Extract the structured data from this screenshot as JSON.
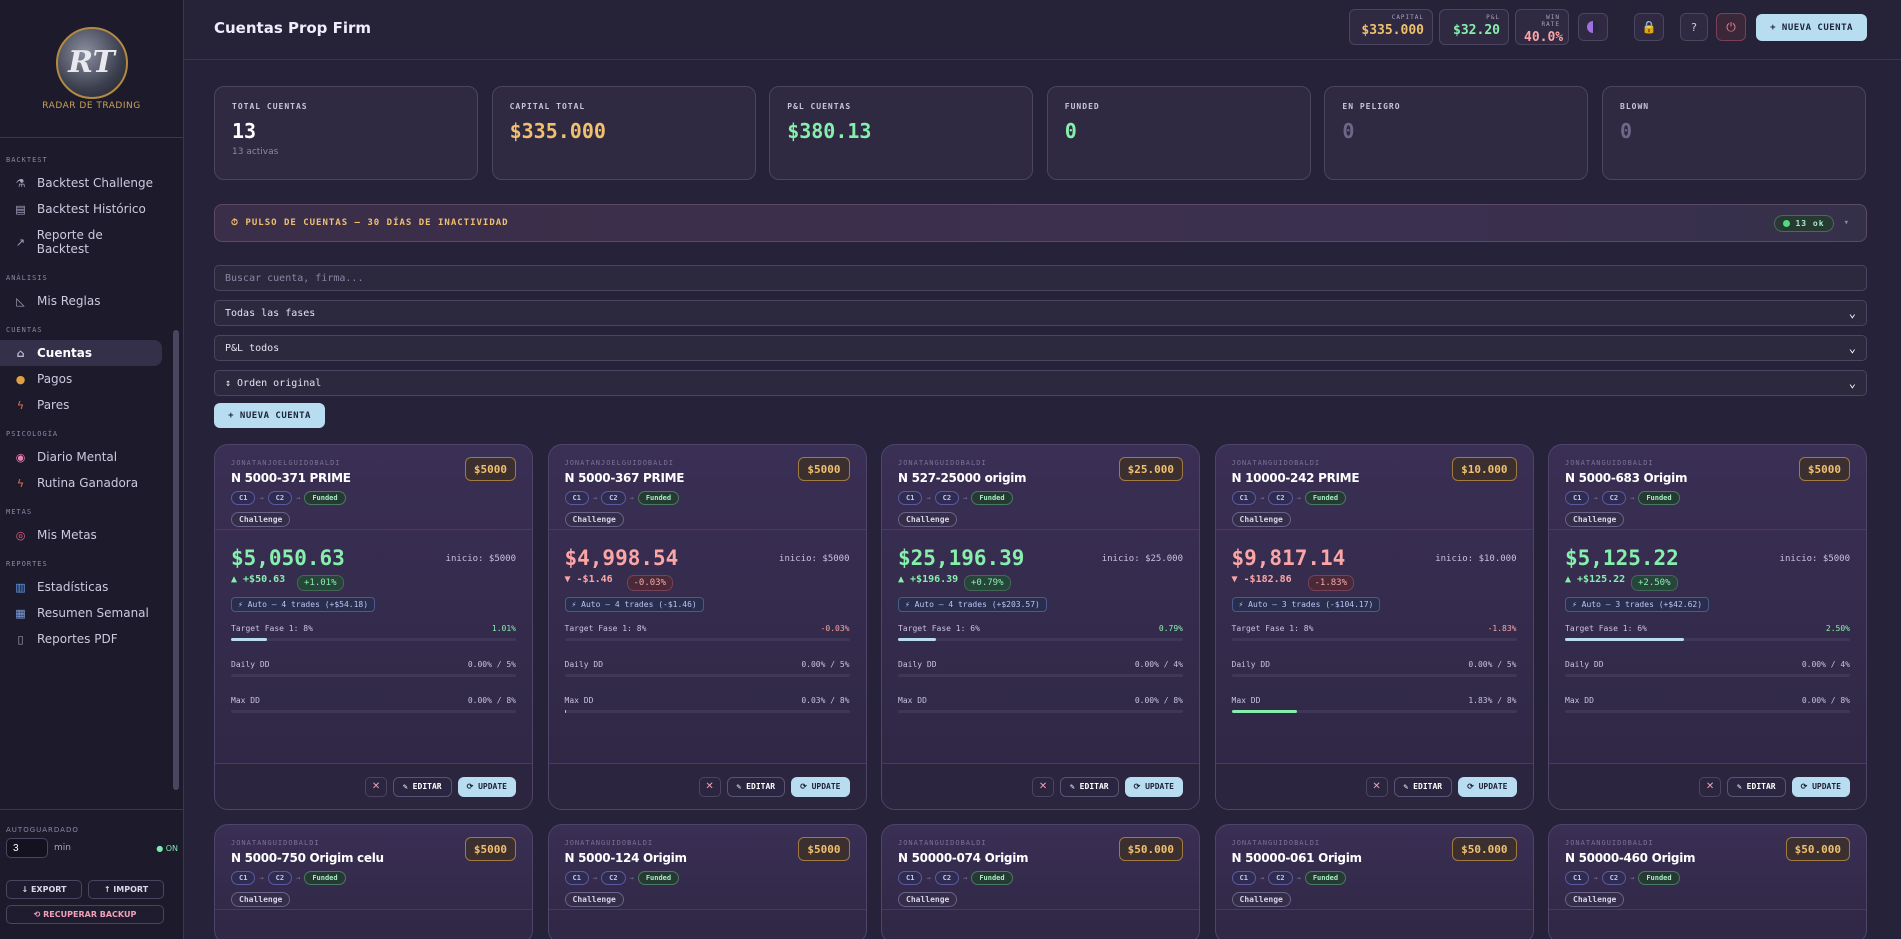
{
  "sidebar": {
    "logo_text": "RADAR DE TRADING",
    "sections": [
      {
        "title": "BACKTEST",
        "items": [
          {
            "label": "Backtest Challenge",
            "icon": "flask-icon"
          },
          {
            "label": "Backtest Histórico",
            "icon": "book-icon"
          },
          {
            "label": "Reporte de Backtest",
            "icon": "chart-line-icon"
          }
        ]
      },
      {
        "title": "ANÁLISIS",
        "items": [
          {
            "label": "Mis Reglas",
            "icon": "ruler-icon"
          }
        ]
      },
      {
        "title": "CUENTAS",
        "items": [
          {
            "label": "Cuentas",
            "icon": "bank-icon"
          },
          {
            "label": "Pagos",
            "icon": "money-bag-icon"
          },
          {
            "label": "Pares",
            "icon": "lightning-icon"
          }
        ]
      },
      {
        "title": "PSICOLOGÍA",
        "items": [
          {
            "label": "Diario Mental",
            "icon": "brain-icon"
          },
          {
            "label": "Rutina Ganadora",
            "icon": "lightning-icon"
          }
        ]
      },
      {
        "title": "METAS",
        "items": [
          {
            "label": "Mis Metas",
            "icon": "target-icon"
          }
        ]
      },
      {
        "title": "REPORTES",
        "items": [
          {
            "label": "Estadísticas",
            "icon": "bar-chart-icon"
          },
          {
            "label": "Resumen Semanal",
            "icon": "calendar-icon"
          },
          {
            "label": "Reportes PDF",
            "icon": "document-icon"
          }
        ]
      }
    ],
    "active": "Cuentas",
    "autosave": {
      "label": "AUTOGUARDADO",
      "value": "3",
      "unit": "min",
      "status": "● ON"
    },
    "export_label": "↓ EXPORT",
    "import_label": "↑ IMPORT",
    "recover_label": "⟲ RECUPERAR BACKUP"
  },
  "header": {
    "title": "Cuentas Prop Firm",
    "capital_label": "CAPITAL",
    "capital_value": "$335.000",
    "pnl_label": "P&L",
    "pnl_value": "$32.20",
    "winrate_label": "WIN RATE",
    "winrate_value": "40.0%",
    "new_account": "+ NUEVA CUENTA",
    "colors": {
      "capital": "#f0c070",
      "pnl": "#86efac",
      "winrate": "#fca5a5"
    }
  },
  "kpis": [
    {
      "label": "TOTAL CUENTAS",
      "value": "13",
      "sub": "13 activas",
      "color": "#ffffff"
    },
    {
      "label": "CAPITAL TOTAL",
      "value": "$335.000",
      "sub": "",
      "color": "#f0c070"
    },
    {
      "label": "P&L CUENTAS",
      "value": "$380.13",
      "sub": "",
      "color": "#86efac"
    },
    {
      "label": "FUNDED",
      "value": "0",
      "sub": "",
      "color": "#86efac"
    },
    {
      "label": "EN PELIGRO",
      "value": "0",
      "sub": "",
      "color": "#6e6888"
    },
    {
      "label": "BLOWN",
      "value": "0",
      "sub": "",
      "color": "#6e6888"
    }
  ],
  "pulse": {
    "label": "⏱ PULSO DE CUENTAS — 30 DÍAS DE INACTIVIDAD",
    "ok": "13 ok",
    "chevron": "▾"
  },
  "filters": {
    "search_placeholder": "Buscar cuenta, firma...",
    "phase": "Todas las fases",
    "pnl": "P&L todos",
    "order": "↕ Orden original"
  },
  "add_account": "+ NUEVA CUENTA",
  "card_labels": {
    "phase1": "C1",
    "phase2": "C2",
    "funded": "Funded",
    "challenge": "Challenge",
    "daily": "Daily DD",
    "maxdd": "Max DD",
    "edit": "✎ EDITAR",
    "update": "⟳ UPDATE",
    "close": "✕"
  },
  "accounts": [
    {
      "owner": "JONATANJOELGUIDOBALDI",
      "name": "N 5000-371 PRIME",
      "size": "$5000",
      "balance": "$5,050.63",
      "inicio": "inicio: $5000",
      "delta": "▲ +$50.63",
      "pct": "+1.01%",
      "dir": "pos",
      "auto": "⚡ Auto — 4 trades (+$54.18)",
      "target_label": "Target Fase 1: 8%",
      "target_val": "1.01%",
      "target_fill": 0.126,
      "daily_val": "0.00% / 5%",
      "daily_fill": 0,
      "max_val": "0.00% / 8%",
      "max_fill": 0
    },
    {
      "owner": "JONATANJOELGUIDOBALDI",
      "name": "N 5000-367 PRIME",
      "size": "$5000",
      "balance": "$4,998.54",
      "inicio": "inicio: $5000",
      "delta": "▼ -$1.46",
      "pct": "-0.03%",
      "dir": "neg",
      "auto": "⚡ Auto — 4 trades (-$1.46)",
      "target_label": "Target Fase 1: 8%",
      "target_val": "-0.03%",
      "target_fill": 0,
      "daily_val": "0.00% / 5%",
      "daily_fill": 0,
      "max_val": "0.03% / 8%",
      "max_fill": 0.004
    },
    {
      "owner": "JONATANGUIDOBALDI",
      "name": "N 527-25000 origim",
      "size": "$25.000",
      "balance": "$25,196.39",
      "inicio": "inicio: $25.000",
      "delta": "▲ +$196.39",
      "pct": "+0.79%",
      "dir": "pos",
      "auto": "⚡ Auto — 4 trades (+$203.57)",
      "target_label": "Target Fase 1: 6%",
      "target_val": "0.79%",
      "target_fill": 0.132,
      "daily_val": "0.00% / 4%",
      "daily_fill": 0,
      "max_val": "0.00% / 8%",
      "max_fill": 0
    },
    {
      "owner": "JONATANGUIDOBALDI",
      "name": "N 10000-242 PRIME",
      "size": "$10.000",
      "balance": "$9,817.14",
      "inicio": "inicio: $10.000",
      "delta": "▼ -$182.86",
      "pct": "-1.83%",
      "dir": "neg",
      "auto": "⚡ Auto — 3 trades (-$104.17)",
      "target_label": "Target Fase 1: 8%",
      "target_val": "-1.83%",
      "target_fill": 0,
      "daily_val": "0.00% / 5%",
      "daily_fill": 0,
      "max_val": "1.83% / 8%",
      "max_fill": 0.229
    },
    {
      "owner": "JONATANGUIDOBALDI",
      "name": "N 5000-683 Origim",
      "size": "$5000",
      "balance": "$5,125.22",
      "inicio": "inicio: $5000",
      "delta": "▲ +$125.22",
      "pct": "+2.50%",
      "dir": "pos",
      "auto": "⚡ Auto — 3 trades (+$42.62)",
      "target_label": "Target Fase 1: 6%",
      "target_val": "2.50%",
      "target_fill": 0.417,
      "daily_val": "0.00% / 4%",
      "daily_fill": 0,
      "max_val": "0.00% / 8%",
      "max_fill": 0
    },
    {
      "owner": "JONATANGUIDOBALDI",
      "name": "N 5000-750 Origim celu",
      "size": "$5000"
    },
    {
      "owner": "JONATANGUIDOBALDI",
      "name": "N 5000-124 Origim",
      "size": "$5000"
    },
    {
      "owner": "JONATANGUIDOBALDI",
      "name": "N 50000-074 Origim",
      "size": "$50.000"
    },
    {
      "owner": "JONATANGUIDOBALDI",
      "name": "N 50000-061 Origim",
      "size": "$50.000"
    },
    {
      "owner": "JONATANGUIDOBALDI",
      "name": "N 50000-460 Origim",
      "size": "$50.000"
    }
  ]
}
